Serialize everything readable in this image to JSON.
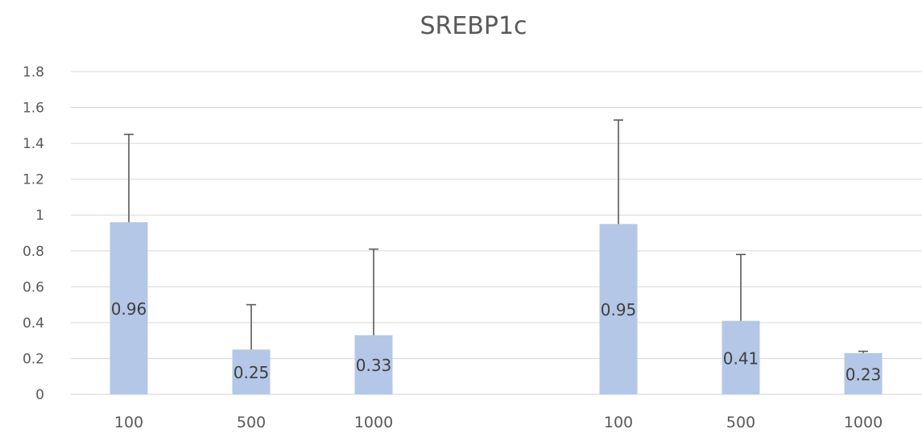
{
  "chart_data": {
    "type": "bar",
    "title": "SREBP1c",
    "xlabel": "",
    "ylabel": "",
    "ylim": [
      0,
      1.8
    ],
    "yticks": [
      "0",
      "0.2",
      "0.4",
      "0.6",
      "0.8",
      "1",
      "1.2",
      "1.4",
      "1.6",
      "1.8"
    ],
    "grid": true,
    "legend": "none",
    "bar_color": "#b4c7e7",
    "groups": [
      {
        "categories": [
          "100",
          "500",
          "1000"
        ],
        "values": [
          0.96,
          0.25,
          0.33
        ],
        "labels": [
          "0.96",
          "0.25",
          "0.33"
        ],
        "error_upper": [
          1.45,
          0.5,
          0.81
        ]
      },
      {
        "categories": [
          "100",
          "500",
          "1000"
        ],
        "values": [
          0.95,
          0.41,
          0.23
        ],
        "labels": [
          "0.95",
          "0.41",
          "0.23"
        ],
        "error_upper": [
          1.53,
          0.78,
          0.24
        ]
      }
    ]
  }
}
